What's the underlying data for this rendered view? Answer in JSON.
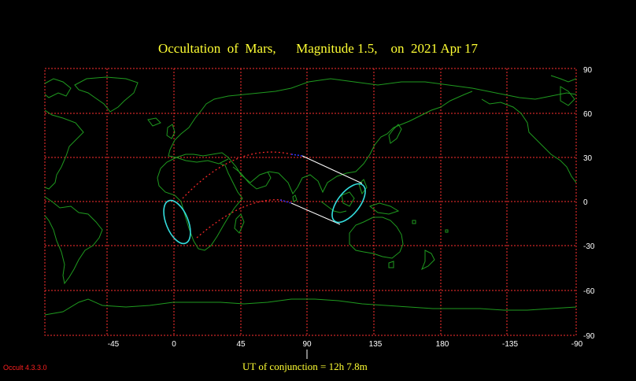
{
  "title": "Occultation  of  Mars,      Magnitude 1.5,    on  2021 Apr 17",
  "conjunction_label": "UT of conjunction = 12h  7.8m",
  "version": "Occult 4.3.3.0",
  "colors": {
    "background": "#000000",
    "title": "#ffff33",
    "grid": "#ff3030",
    "coast": "#1f9a1f",
    "ellipse": "#33dddd",
    "night_path": "#ff2a2a",
    "day_path": "#ffffff",
    "twilight_path": "#3333ff",
    "version_text": "#ff2020"
  },
  "map": {
    "projection": "equirectangular",
    "lon_ticks": [
      "-45",
      "0",
      "45",
      "90",
      "135",
      "180",
      "-135",
      "-90"
    ],
    "lat_ticks": [
      "90",
      "60",
      "30",
      "0",
      "-30",
      "-60",
      "-90"
    ],
    "lon_range": [
      -90,
      270
    ],
    "lat_range": [
      -90,
      90
    ],
    "grid": true
  },
  "occultation": {
    "body": "Mars",
    "magnitude": 1.5,
    "date": "2021 Apr 17",
    "conjunction_longitude": 90
  }
}
